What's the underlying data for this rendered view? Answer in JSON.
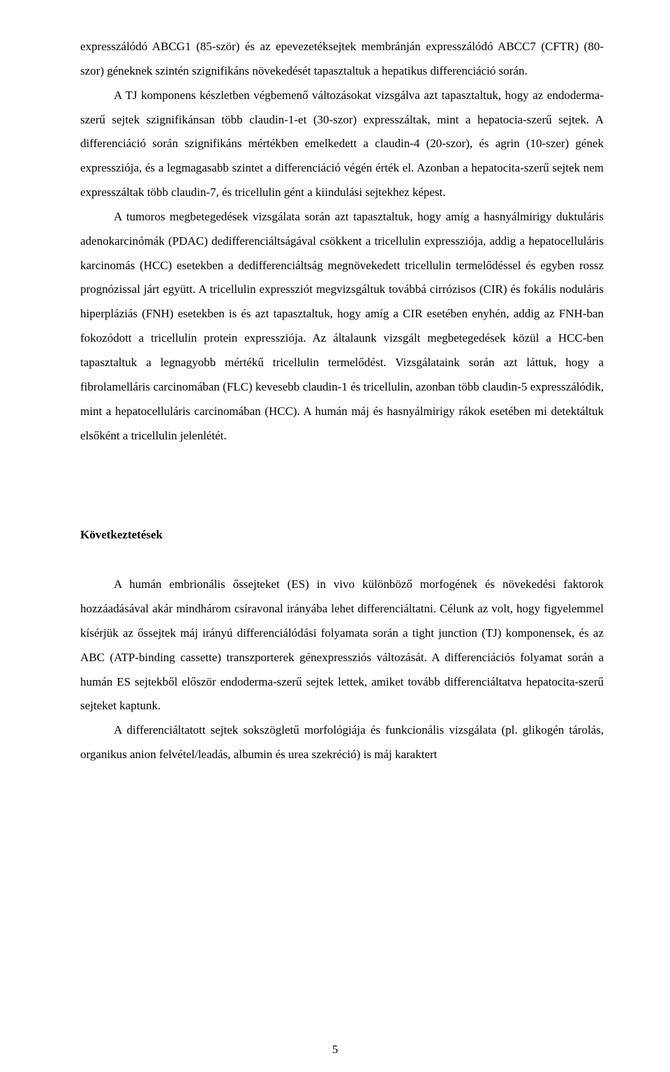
{
  "paragraphs": {
    "p1": "expresszálódó ABCG1 (85-ször) és az epevezetéksejtek membránján expresszálódó ABCC7 (CFTR) (80-szor) géneknek szintén szignifikáns növekedését tapasztaltuk a hepatikus differenciáció során.",
    "p2": "A TJ komponens készletben végbemenő változásokat vizsgálva azt tapasztaltuk, hogy az endoderma-szerű sejtek szignifikánsan több claudin-1-et (30-szor) expresszáltak, mint a hepatocia-szerű sejtek. A differenciáció során szignifikáns mértékben emelkedett a claudin-4 (20-szor), és agrin (10-szer) gének expressziója, és a legmagasabb szintet a differenciáció végén érték el. Azonban a hepatocita-szerű sejtek nem expresszáltak több claudin-7, és tricellulin gént a kiindulási sejtekhez képest.",
    "p3": "A tumoros megbetegedések vizsgálata során azt tapasztaltuk, hogy amíg a hasnyálmirigy duktuláris adenokarcinómák (PDAC) dedifferenciáltságával csökkent a tricellulin expressziója, addig a hepatocelluláris karcinomás (HCC) esetekben a dedifferenciáltság megnövekedett tricellulin termelődéssel és egyben rossz prognózissal járt együtt. A tricellulin expressziót megvizsgáltuk továbbá cirrózisos (CIR) és fokális noduláris hiperpláziás (FNH) esetekben is és azt tapasztaltuk, hogy amíg a CIR esetében enyhén, addig az FNH-ban fokozódott a tricellulin protein expressziója. Az általaunk vizsgált megbetegedések közül a HCC-ben tapasztaltuk a legnagyobb mértékű tricellulin termelődést. Vizsgálataink során azt láttuk, hogy a fibrolamelláris carcinomában (FLC) kevesebb claudin-1 és tricellulin, azonban több claudin-5 expresszálódik, mint a hepatocelluláris carcinomában (HCC). A humán máj és hasnyálmirigy rákok esetében mi detektáltuk elsőként a tricellulin jelenlétét.",
    "heading": "Következtetések",
    "p4": "A humán embrionális őssejteket (ES) in vivo különböző morfogének és növekedési faktorok hozzáadásával akár mindhárom csíravonal irányába lehet differenciáltatni. Célunk az volt, hogy figyelemmel kísérjük az őssejtek máj irányú differenciálódási folyamata során a tight junction (TJ) komponensek, és az ABC (ATP-binding cassette) transzporterek génexpressziós változását. A differenciációs folyamat során a humán ES sejtekből először endoderma-szerű sejtek lettek, amiket tovább differenciáltatva hepatocita-szerű sejteket kaptunk.",
    "p5": "A differenciáltatott sejtek sokszögletű morfológiája és funkcionális vizsgálata (pl. glikogén tárolás, organikus anion felvétel/leadás, albumin és urea szekréció) is máj karaktert"
  },
  "pageNumber": "5"
}
